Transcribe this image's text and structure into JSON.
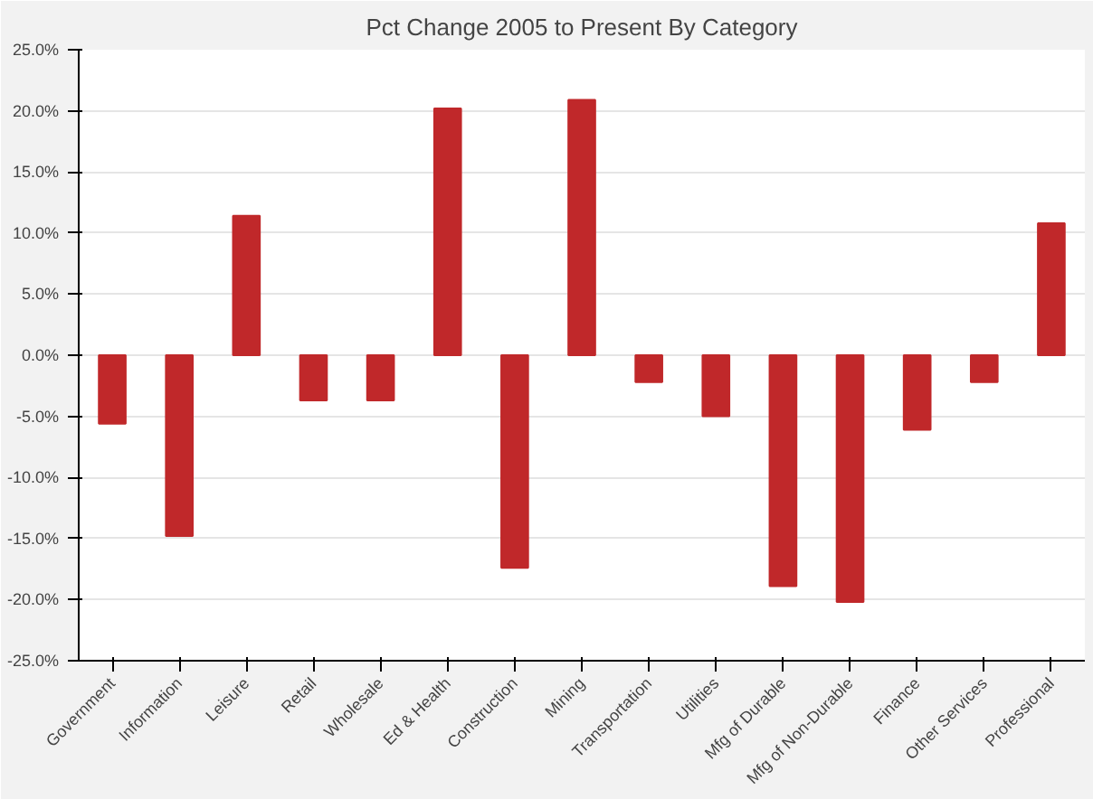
{
  "chart_data": {
    "type": "bar",
    "title": "Pct Change 2005 to Present By Category",
    "categories": [
      "Government",
      "Information",
      "Leisure",
      "Retail",
      "Wholesale",
      "Ed & Health",
      "Construction",
      "Mining",
      "Transportation",
      "Utilities",
      "Mfg of Durable",
      "Mfg of Non-Durable",
      "Finance",
      "Other Services",
      "Professional"
    ],
    "values": [
      -5.6,
      -14.8,
      11.4,
      -3.7,
      -3.7,
      20.2,
      -17.4,
      20.9,
      -2.2,
      -5.0,
      -18.9,
      -20.2,
      -6.1,
      -2.2,
      10.8
    ],
    "color": "#c0282a",
    "ylim": [
      -25,
      25
    ],
    "yticks": [
      {
        "value": -25,
        "label": "-25.0%"
      },
      {
        "value": -20,
        "label": "-20.0%"
      },
      {
        "value": -15,
        "label": "-15.0%"
      },
      {
        "value": -10,
        "label": "-10.0%"
      },
      {
        "value": -5,
        "label": "-5.0%"
      },
      {
        "value": 0,
        "label": "0.0%"
      },
      {
        "value": 5,
        "label": "5.0%"
      },
      {
        "value": 10,
        "label": "10.0%"
      },
      {
        "value": 15,
        "label": "15.0%"
      },
      {
        "value": 20,
        "label": "20.0%"
      },
      {
        "value": 25,
        "label": "25.0%"
      }
    ],
    "grid": "y"
  }
}
